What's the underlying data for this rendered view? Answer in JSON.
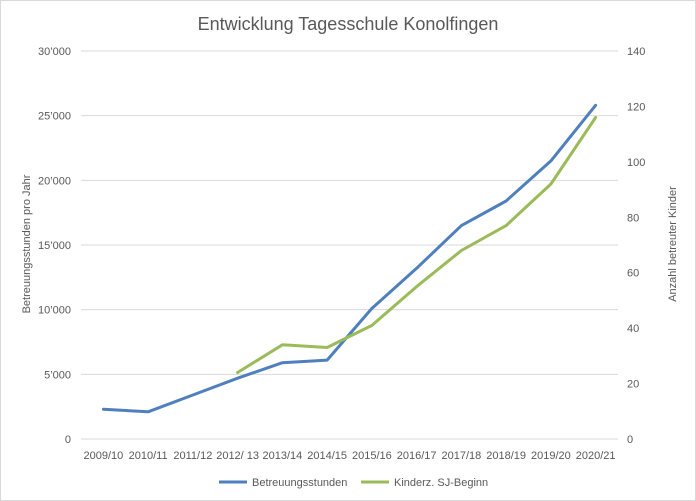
{
  "chart_data": {
    "type": "line",
    "title": "Entwicklung Tagesschule Konolfingen",
    "categories": [
      "2009/10",
      "2010/11",
      "2011/12",
      "2012/ 13",
      "2013/14",
      "2014/15",
      "2015/16",
      "2016/17",
      "2017/18",
      "2018/19",
      "2019/20",
      "2020/21"
    ],
    "ylabel": "Betreuungsstunden pro Jahr",
    "y2label": "Anzahl betreuter  Kinder",
    "ylim": [
      0,
      30000
    ],
    "y2lim": [
      0,
      140
    ],
    "yticks": [
      "0",
      "5’000",
      "10’000",
      "15’000",
      "20’000",
      "25’000",
      "30’000"
    ],
    "y2ticks": [
      "0",
      "20",
      "40",
      "60",
      "80",
      "100",
      "120",
      "140"
    ],
    "grid": true,
    "legend_position": "bottom",
    "series": [
      {
        "name": "Betreuungsstunden",
        "axis": "left",
        "color": "#4f7fbd",
        "values": [
          2300,
          2100,
          3400,
          4700,
          5900,
          6100,
          10100,
          13200,
          16500,
          18400,
          21500,
          25800
        ]
      },
      {
        "name": "Kinderz. SJ-Beginn",
        "axis": "right",
        "color": "#9bbb59",
        "values": [
          null,
          null,
          null,
          24,
          34,
          33,
          41,
          55,
          68,
          77,
          92,
          116
        ]
      }
    ]
  }
}
